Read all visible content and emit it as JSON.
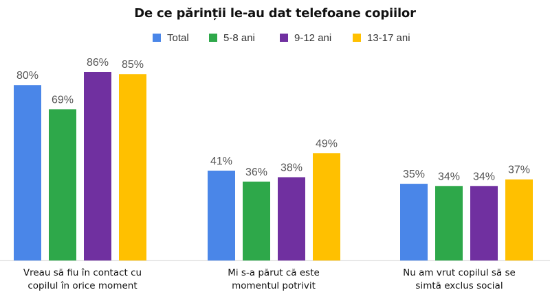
{
  "chart_data": {
    "type": "bar",
    "title": "De ce părinții le-au dat telefoane copiilor",
    "categories": [
      [
        "Vreau să fiu în contact cu",
        "copilul în orice moment"
      ],
      [
        "Mi s-a părut că este",
        "momentul potrivit"
      ],
      [
        "Nu am vrut copilul să se",
        "simtă exclus social"
      ]
    ],
    "series": [
      {
        "name": "Total",
        "color": "#4A86E8",
        "values": [
          80,
          41,
          35
        ],
        "labels": [
          "80%",
          "41%",
          "35%"
        ]
      },
      {
        "name": "5-8 ani",
        "color": "#2EA84A",
        "values": [
          69,
          36,
          34
        ],
        "labels": [
          "69%",
          "36%",
          "34%"
        ]
      },
      {
        "name": "9-12 ani",
        "color": "#7030A0",
        "values": [
          86,
          38,
          34
        ],
        "labels": [
          "86%",
          "38%",
          "34%"
        ]
      },
      {
        "name": "13-17 ani",
        "color": "#FFC000",
        "values": [
          85,
          49,
          37
        ],
        "labels": [
          "85%",
          "49%",
          "37%"
        ]
      }
    ],
    "ylim": [
      0,
      100
    ],
    "value_suffix": "%",
    "grid": false,
    "legend_position": "top-center",
    "xlabel": "",
    "ylabel": ""
  }
}
